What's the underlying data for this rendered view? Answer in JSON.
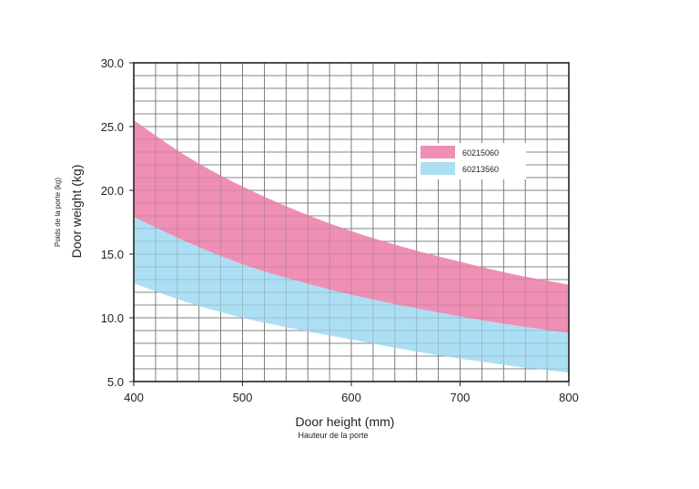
{
  "chart_data": {
    "type": "area",
    "xlabel": "Door height (mm)",
    "xlabel_fr": "Hauteur de la porte",
    "ylabel": "Door weight (kg)",
    "ylabel_fr": "Poids de la porte (kg)",
    "xlim": [
      400,
      800
    ],
    "ylim": [
      5,
      30
    ],
    "x_ticks": [
      400,
      500,
      600,
      700,
      800
    ],
    "x_tick_labels": [
      "400",
      "500",
      "600",
      "700",
      "800"
    ],
    "y_ticks": [
      5,
      10,
      15,
      20,
      25,
      30
    ],
    "y_tick_labels": [
      "5.0",
      "10.0",
      "15.0",
      "20.0",
      "25.0",
      "30.0"
    ],
    "grid": true,
    "legend_position": "top-right",
    "series": [
      {
        "name": "60215060",
        "color": "#ef8fb5",
        "x": [
          400,
          450,
          500,
          550,
          600,
          650,
          700,
          750,
          800
        ],
        "upper": [
          25.5,
          22.6,
          20.3,
          18.4,
          16.8,
          15.5,
          14.4,
          13.4,
          12.6
        ],
        "lower": [
          17.9,
          15.9,
          14.2,
          12.9,
          11.8,
          10.9,
          10.1,
          9.4,
          8.8
        ]
      },
      {
        "name": "60213560",
        "color": "#acdff4",
        "x": [
          400,
          450,
          500,
          550,
          600,
          650,
          700,
          750,
          800
        ],
        "upper": [
          17.9,
          15.9,
          14.2,
          12.9,
          11.8,
          10.9,
          10.1,
          9.4,
          8.8
        ],
        "lower": [
          12.7,
          11.2,
          10.0,
          9.1,
          8.3,
          7.5,
          6.8,
          6.2,
          5.7
        ]
      }
    ]
  }
}
